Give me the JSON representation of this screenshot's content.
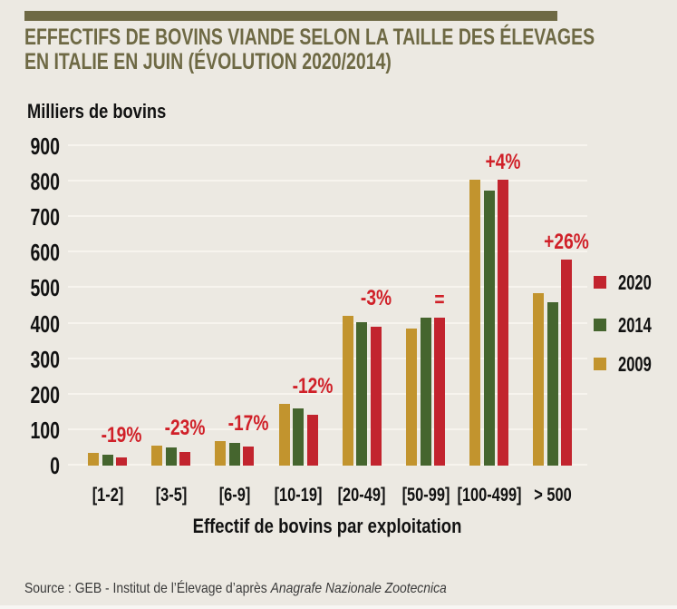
{
  "header": {
    "title_line1": "EFFECTIFS DE BOVINS VIANDE SELON LA TAILLE DES ÉLEVAGES",
    "title_line2": "EN ITALIE EN JUIN (ÉVOLUTION 2020/2014)",
    "accent_color": "#6e6944"
  },
  "chart_data": {
    "type": "bar",
    "title": "Effectifs de bovins viande selon la taille des élevages en Italie en juin (évolution 2020/2014)",
    "ylabel": "Milliers de bovins",
    "xlabel": "Effectif de bovins par exploitation",
    "ylim": [
      0,
      900
    ],
    "yticks": [
      900,
      800,
      700,
      600,
      500,
      400,
      300,
      200,
      100,
      0
    ],
    "grid": true,
    "legend_position": "right",
    "categories": [
      "[1-2]",
      "[3-5]",
      "[6-9]",
      "[10-19]",
      "[20-49]",
      "[50-99]",
      "[100-499]",
      "> 500"
    ],
    "series": [
      {
        "name": "2009",
        "color": "#c2942e",
        "values": [
          36,
          56,
          70,
          175,
          421,
          387,
          805,
          485
        ]
      },
      {
        "name": "2014",
        "color": "#45652e",
        "values": [
          30,
          51,
          64,
          162,
          404,
          418,
          775,
          460
        ]
      },
      {
        "name": "2020",
        "color": "#c2242e",
        "values": [
          24,
          39,
          53,
          143,
          392,
          416,
          805,
          580
        ]
      }
    ],
    "annotations": [
      "-19%",
      "-23%",
      "-17%",
      "-12%",
      "-3%",
      "=",
      "+4%",
      "+26%"
    ],
    "annotation_color": "#d02028"
  },
  "legend": {
    "items": [
      {
        "label": "2020",
        "color": "#c2242e"
      },
      {
        "label": "2014",
        "color": "#45652e"
      },
      {
        "label": "2009",
        "color": "#c2942e"
      }
    ]
  },
  "source": {
    "prefix": "Source : GEB - Institut de l’Élevage d’après ",
    "italic": "Anagrafe Nazionale Zootecnica"
  }
}
